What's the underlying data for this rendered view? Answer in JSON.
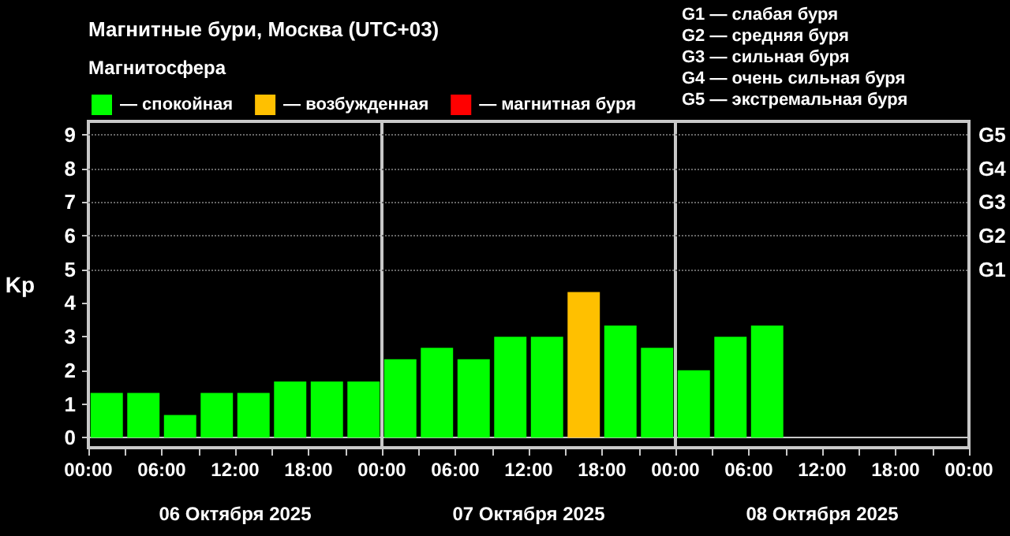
{
  "chart_data": {
    "type": "bar",
    "title": "Магнитные бури, Москва (UTC+03)",
    "legend_title": "Магнитосфера",
    "ylabel": "Kp",
    "annotations": [
      "G1 — слабая буря",
      "G2 — средняя буря",
      "G3 — сильная буря",
      "G4 — очень сильная буря",
      "G5 — экстремальная буря"
    ],
    "x": [
      "2025-10-06T01:30",
      "2025-10-06T04:30",
      "2025-10-06T07:30",
      "2025-10-06T10:30",
      "2025-10-06T13:30",
      "2025-10-06T16:30",
      "2025-10-06T19:30",
      "2025-10-06T22:30",
      "2025-10-07T01:30",
      "2025-10-07T04:30",
      "2025-10-07T07:30",
      "2025-10-07T10:30",
      "2025-10-07T13:30",
      "2025-10-07T16:30",
      "2025-10-07T19:30",
      "2025-10-07T22:30",
      "2025-10-08T01:30",
      "2025-10-08T04:30",
      "2025-10-08T07:30"
    ],
    "series": [
      {
        "name": "— спокойная",
        "color": "#00ff00",
        "values": [
          1.33,
          1.33,
          0.67,
          1.33,
          1.33,
          1.67,
          1.67,
          1.67,
          2.33,
          2.67,
          2.33,
          3,
          3,
          null,
          3.33,
          2.67,
          2,
          3,
          3.33
        ]
      },
      {
        "name": "— возбужденная",
        "color": "#ffc000",
        "values": [
          null,
          null,
          null,
          null,
          null,
          null,
          null,
          null,
          null,
          null,
          null,
          null,
          null,
          4.33,
          null,
          null,
          null,
          null,
          null
        ]
      },
      {
        "name": "— магнитная буря",
        "color": "#ff0000",
        "values": [
          null,
          null,
          null,
          null,
          null,
          null,
          null,
          null,
          null,
          null,
          null,
          null,
          null,
          null,
          null,
          null,
          null,
          null,
          null
        ]
      }
    ],
    "xlim": [
      "2025-10-06T00:00",
      "2025-10-09T00:00"
    ],
    "xticks": [
      {
        "value": "2025-10-06T00:00",
        "label": "00:00"
      },
      {
        "value": "2025-10-06T03:00",
        "label": null
      },
      {
        "value": "2025-10-06T06:00",
        "label": "06:00"
      },
      {
        "value": "2025-10-06T09:00",
        "label": null
      },
      {
        "value": "2025-10-06T12:00",
        "label": "12:00"
      },
      {
        "value": "2025-10-06T15:00",
        "label": null
      },
      {
        "value": "2025-10-06T18:00",
        "label": "18:00"
      },
      {
        "value": "2025-10-06T21:00",
        "label": null
      },
      {
        "value": "2025-10-07T00:00",
        "label": "00:00"
      },
      {
        "value": "2025-10-07T03:00",
        "label": null
      },
      {
        "value": "2025-10-07T06:00",
        "label": "06:00"
      },
      {
        "value": "2025-10-07T09:00",
        "label": null
      },
      {
        "value": "2025-10-07T12:00",
        "label": "12:00"
      },
      {
        "value": "2025-10-07T15:00",
        "label": null
      },
      {
        "value": "2025-10-07T18:00",
        "label": "18:00"
      },
      {
        "value": "2025-10-07T21:00",
        "label": null
      },
      {
        "value": "2025-10-08T00:00",
        "label": "00:00"
      },
      {
        "value": "2025-10-08T03:00",
        "label": null
      },
      {
        "value": "2025-10-08T06:00",
        "label": "06:00"
      },
      {
        "value": "2025-10-08T09:00",
        "label": null
      },
      {
        "value": "2025-10-08T12:00",
        "label": "12:00"
      },
      {
        "value": "2025-10-08T15:00",
        "label": null
      },
      {
        "value": "2025-10-08T18:00",
        "label": "18:00"
      },
      {
        "value": "2025-10-08T21:00",
        "label": null
      },
      {
        "value": "2025-10-09T00:00",
        "label": "00:00"
      }
    ],
    "x2lim": [
      "2025-10-06T00:00",
      "2025-10-09T00:00"
    ],
    "x2ticks": [
      {
        "value": "2025-10-06T00:00",
        "label": null
      },
      {
        "value": "2025-10-06T12:00",
        "label": "06 Октября 2025"
      },
      {
        "value": "2025-10-07T00:00",
        "label": null
      },
      {
        "value": "2025-10-07T12:00",
        "label": "07 Октября 2025"
      },
      {
        "value": "2025-10-08T00:00",
        "label": null
      },
      {
        "value": "2025-10-08T12:00",
        "label": "08 Октября 2025"
      },
      {
        "value": "2025-10-09T00:00",
        "label": null
      }
    ],
    "ylim": [
      -0.3,
      9.4
    ],
    "yticks": [
      0,
      1,
      2,
      3,
      4,
      5,
      6,
      7,
      8,
      9
    ],
    "ref_lines": [
      {
        "axis": "x",
        "value": "2025-10-07T00:00",
        "color": "#c8c8c8"
      },
      {
        "axis": "x",
        "value": "2025-10-08T00:00",
        "color": "#c8c8c8"
      },
      {
        "axis": "y",
        "value": 5,
        "label": "G1",
        "color": "#666666",
        "line_style": "dotted"
      },
      {
        "axis": "y",
        "value": 6,
        "label": "G2",
        "color": "#666666",
        "line_style": "dotted"
      },
      {
        "axis": "y",
        "value": 7,
        "label": "G3",
        "color": "#666666",
        "line_style": "dotted"
      },
      {
        "axis": "y",
        "value": 8,
        "label": "G4",
        "color": "#666666",
        "line_style": "dotted"
      },
      {
        "axis": "y",
        "value": 9,
        "label": "G5",
        "color": "#666666",
        "line_style": "dotted"
      }
    ],
    "legend": "top left"
  }
}
